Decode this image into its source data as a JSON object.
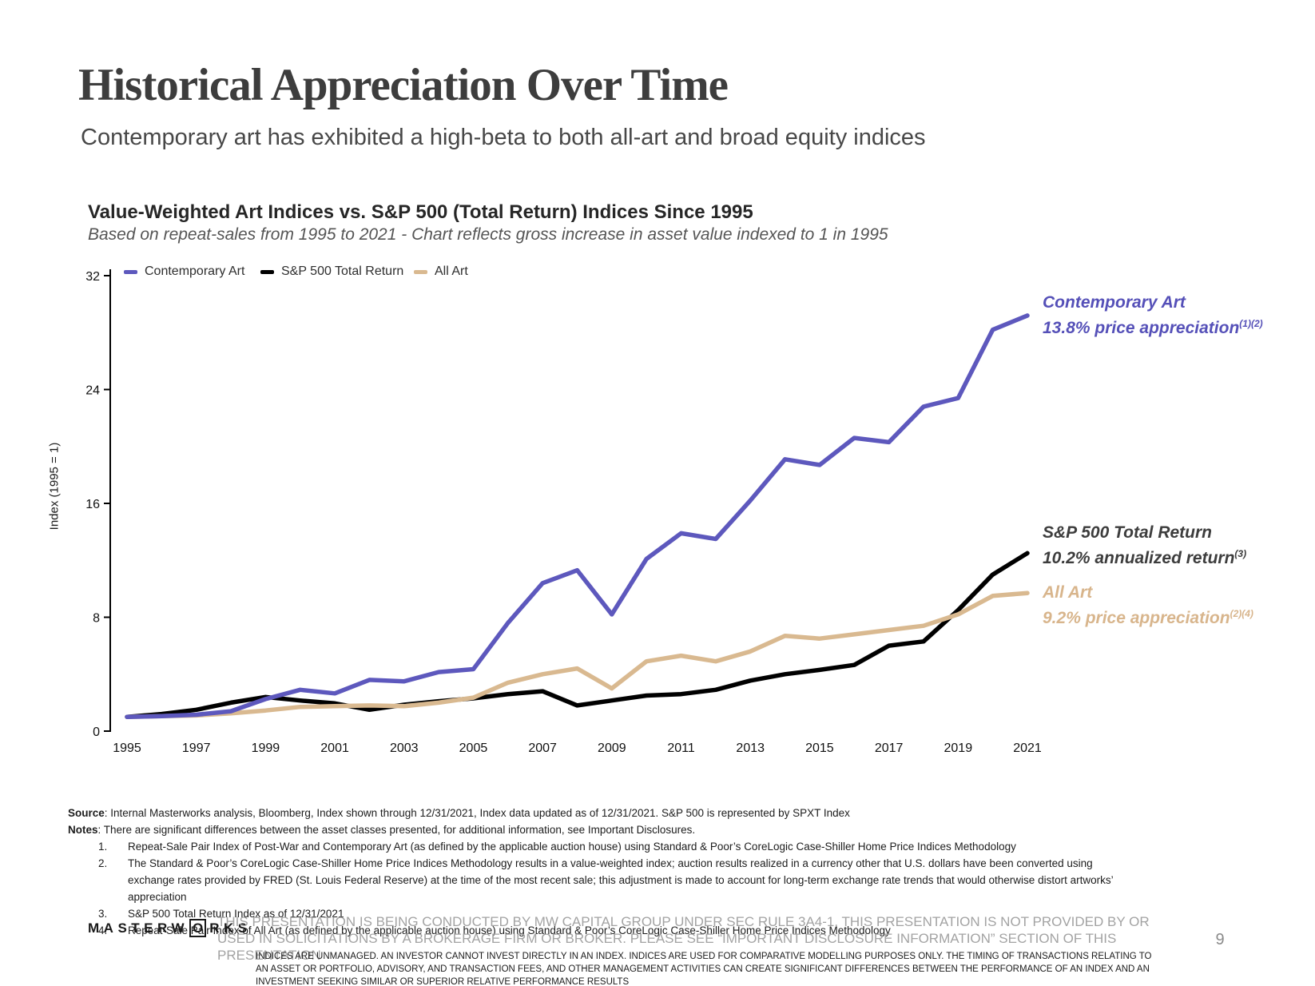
{
  "header": {
    "title": "Historical Appreciation Over Time",
    "subtitle": "Contemporary art has exhibited a high-beta to both all-art and broad equity indices"
  },
  "chart": {
    "title": "Value-Weighted Art Indices vs. S&P 500 (Total Return) Indices Since 1995",
    "subtitle": "Based on repeat-sales from 1995 to 2021 - Chart reflects gross increase in asset value indexed to 1 in 1995",
    "y_axis_label": "Index (1995 = 1)"
  },
  "chart_data": {
    "type": "line",
    "title": "Value-Weighted Art Indices vs. S&P 500 (Total Return) Indices Since 1995",
    "ylabel": "Index (1995 = 1)",
    "ylim": [
      0,
      32
    ],
    "grid": false,
    "legend_position": "top-left",
    "x": [
      1995,
      1996,
      1997,
      1998,
      1999,
      2000,
      2001,
      2002,
      2003,
      2004,
      2005,
      2006,
      2007,
      2008,
      2009,
      2010,
      2011,
      2012,
      2013,
      2014,
      2015,
      2016,
      2017,
      2018,
      2019,
      2020,
      2021
    ],
    "x_ticks": [
      1995,
      1997,
      1999,
      2001,
      2003,
      2005,
      2007,
      2009,
      2011,
      2013,
      2015,
      2017,
      2019,
      2021
    ],
    "y_ticks": [
      0,
      8,
      16,
      24,
      32
    ],
    "series": [
      {
        "name": "Contemporary Art",
        "color": "#5d58bd",
        "values": [
          1.0,
          1.05,
          1.15,
          1.4,
          2.25,
          2.9,
          2.65,
          3.6,
          3.5,
          4.15,
          4.35,
          7.6,
          10.4,
          11.3,
          8.2,
          12.1,
          13.9,
          13.5,
          16.2,
          19.1,
          18.7,
          20.6,
          20.3,
          22.8,
          23.4,
          28.2,
          29.2
        ]
      },
      {
        "name": "S&P 500 Total Return",
        "color": "#000000",
        "values": [
          1.0,
          1.2,
          1.5,
          2.0,
          2.4,
          2.15,
          1.95,
          1.5,
          1.85,
          2.1,
          2.3,
          2.6,
          2.8,
          1.8,
          2.15,
          2.5,
          2.6,
          2.9,
          3.55,
          4.0,
          4.3,
          4.65,
          6.0,
          6.3,
          8.5,
          11.0,
          12.5
        ]
      },
      {
        "name": "All Art",
        "color": "#d9b990",
        "values": [
          1.0,
          1.05,
          1.1,
          1.25,
          1.45,
          1.7,
          1.75,
          1.8,
          1.75,
          2.0,
          2.35,
          3.4,
          4.0,
          4.4,
          3.0,
          4.9,
          5.3,
          4.9,
          5.6,
          6.7,
          6.5,
          6.8,
          7.1,
          7.4,
          8.2,
          9.5,
          9.7
        ]
      }
    ]
  },
  "annotations": [
    {
      "line1": "Contemporary Art",
      "line2": "13.8% price appreciation",
      "sup": "(1)(2)",
      "color": "#5550b8"
    },
    {
      "line1": "S&P 500 Total Return",
      "line2": "10.2% annualized return",
      "sup": "(3)",
      "color": "#3d3d3d"
    },
    {
      "line1": "All Art",
      "line2": "9.2% price appreciation",
      "sup": "(2)(4)",
      "color": "#d8b58c"
    }
  ],
  "footnotes": {
    "source_label": "Source",
    "source_text": ": Internal Masterworks analysis, Bloomberg, Index shown through 12/31/2021, Index data updated as of 12/31/2021. S&P 500 is represented by SPXT Index",
    "notes_label": "Notes",
    "notes_text": ": There are significant differences between the asset classes presented, for additional information, see Important Disclosures.",
    "items": [
      {
        "num": "1.",
        "text": "Repeat-Sale Pair Index of Post-War and Contemporary Art (as defined by the applicable auction house) using Standard & Poor’s CoreLogic Case-Shiller Home Price Indices Methodology"
      },
      {
        "num": "2.",
        "text": "The Standard & Poor’s CoreLogic Case-Shiller Home Price Indices Methodology results in a value-weighted index; auction results realized in a currency other that U.S. dollars have been converted using exchange rates provided by FRED (St. Louis Federal Reserve) at the time of the most recent sale; this adjustment is made to account for long-term exchange rate trends that would otherwise distort artworks’ appreciation"
      },
      {
        "num": "3.",
        "text": "S&P 500 Total Return Index as of 12/31/2021"
      },
      {
        "num": "4.",
        "text": "Repeat-Sale Pair Index of All Art (as defined by the applicable auction house) using Standard & Poor’s CoreLogic Case-Shiller Home Price Indices Methodology"
      }
    ]
  },
  "footer": {
    "logo_part1": "MASTERW",
    "logo_o": "O",
    "logo_part2": "RKS",
    "disclaimer_gray": "THIS PRESENTATION  IS BEING CONDUCTED BY MW CAPITAL GROUP UNDER SEC RULE 3A4-1. THIS PRESENTATION  IS NOT PROVIDED BY OR USED IN SOLICITATIONS BY A BROKERAGE FIRM OR BROKER. PLEASE SEE “IMPORTANT DISCLOSURE INFORMATION” SECTION OF THIS PRESENTATION",
    "disclaimer_black": "INDICES ARE UNMANAGED. AN INVESTOR CANNOT INVEST DIRECTLY IN AN INDEX. INDICES ARE USED FOR COMPARATIVE MODELLING PURPOSES ONLY. THE TIMING OF TRANSACTIONS RELATING TO AN ASSET OR PORTFOLIO, ADVISORY, AND TRANSACTION FEES, AND OTHER MANAGEMENT ACTIVITIES CAN CREATE SIGNIFICANT DIFFERENCES BETWEEN THE PERFORMANCE OF AN INDEX AND AN INVESTMENT SEEKING SIMILAR OR SUPERIOR RELATIVE PERFORMANCE RESULTS",
    "page_number": "9"
  }
}
